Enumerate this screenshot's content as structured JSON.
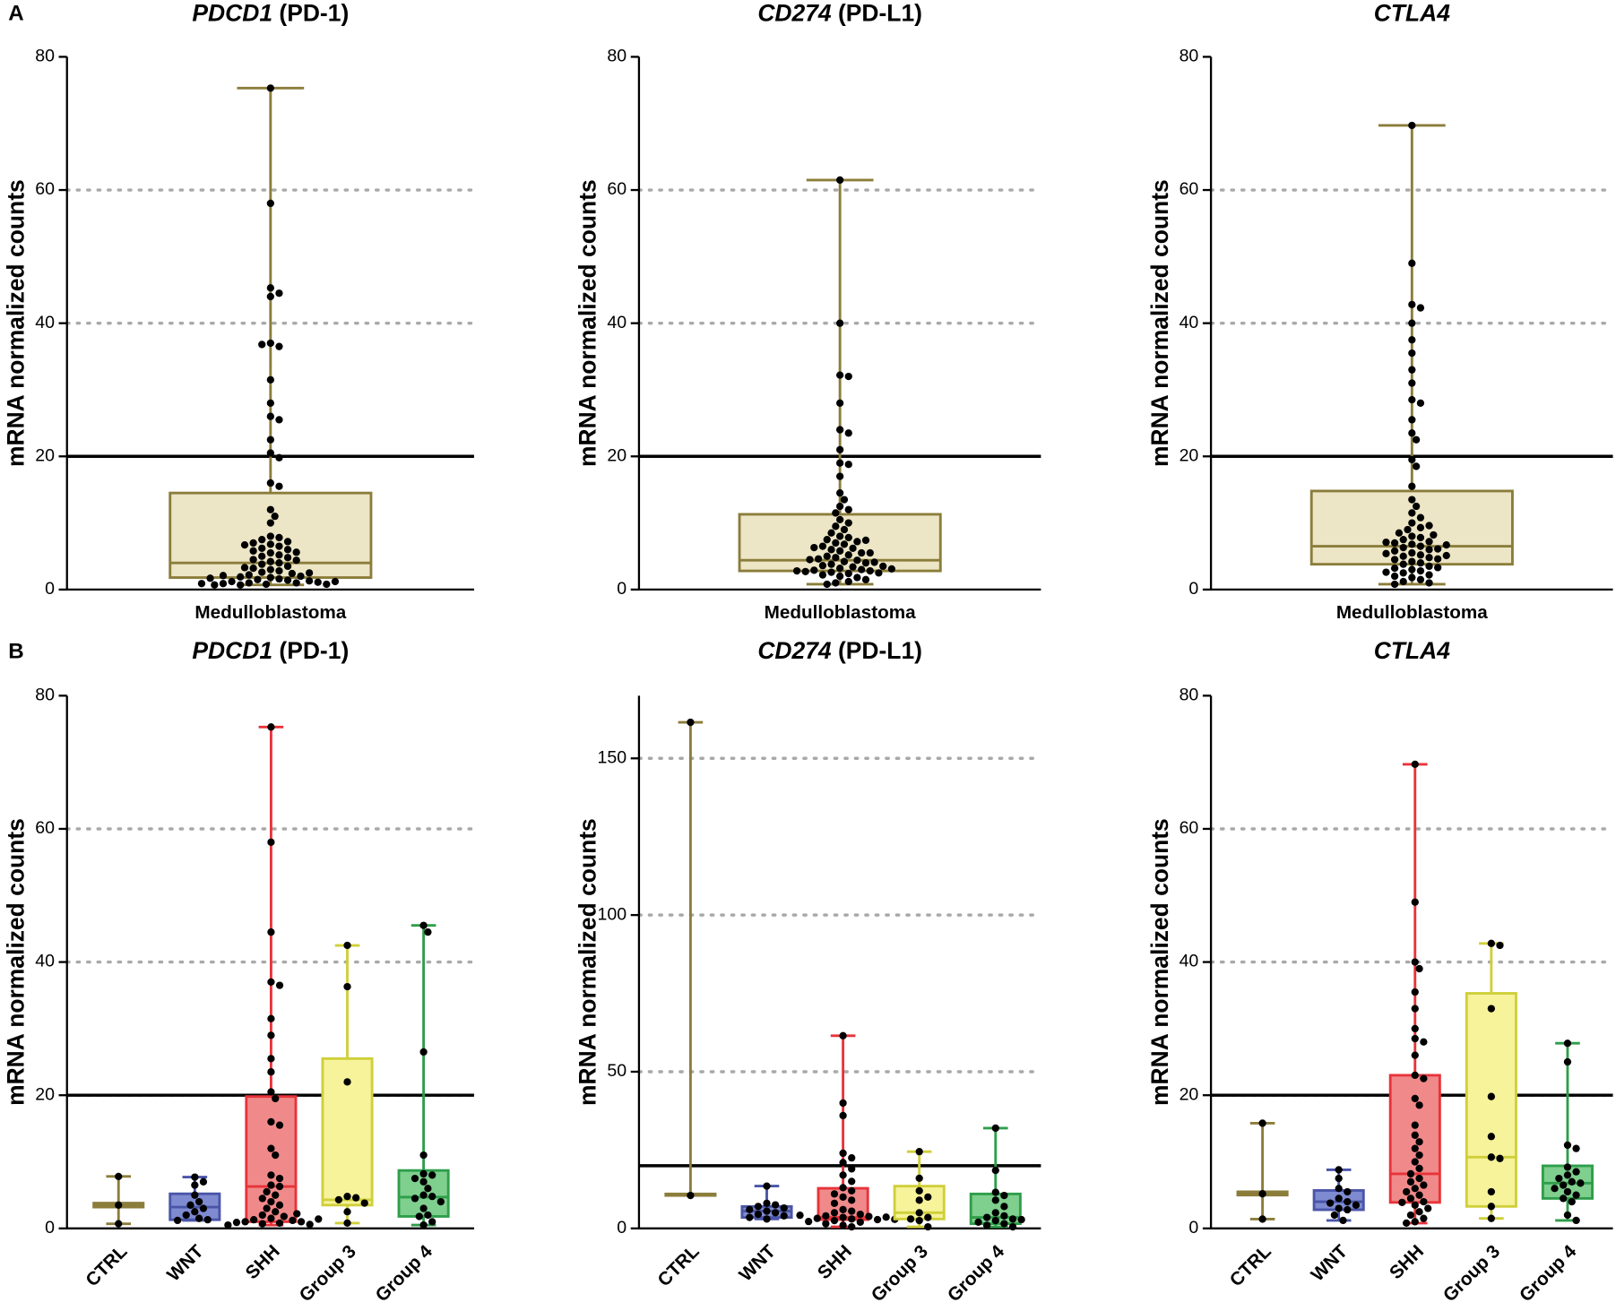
{
  "chart_data": [
    {
      "type": "box",
      "panel": "A",
      "title_gene": "PDCD1",
      "title_protein": "(PD-1)",
      "ylabel": "mRNA normalized counts",
      "ylim": [
        0,
        80
      ],
      "yticks": [
        0,
        20,
        40,
        60,
        80
      ],
      "threshold": 20,
      "grid": true,
      "categories": [
        "Medulloblastoma"
      ],
      "boxes": [
        {
          "stroke": "#8b7d3a",
          "fill": "#ece5c6",
          "min": 0.7,
          "q1": 1.8,
          "median": 4,
          "q3": 14.5,
          "max": 75.3,
          "points": [
            75.3,
            58,
            45.3,
            44.5,
            44,
            37,
            36.5,
            36.8,
            31.5,
            28,
            26,
            25.5,
            22.5,
            20.5,
            19.8,
            16,
            15.5,
            12,
            11,
            10,
            8,
            7.8,
            7.5,
            7.2,
            7,
            6.8,
            6.5,
            6.2,
            6,
            5.8,
            5.5,
            5.2,
            5,
            4.8,
            4.5,
            4.2,
            4,
            3.8,
            3.5,
            3.2,
            3,
            2.8,
            2.6,
            2.4,
            2.2,
            2,
            1.9,
            1.8,
            1.6,
            1.5,
            1.4,
            1.3,
            1.2,
            1.1,
            1,
            1,
            0.9,
            0.8,
            0.8,
            0.7,
            0.7,
            2.5,
            3.3,
            4.4,
            5.6,
            6.7,
            1.7,
            2.1,
            1.2,
            0.9
          ]
        }
      ]
    },
    {
      "type": "box",
      "title_gene": "CD274",
      "title_protein": "(PD-L1)",
      "ylabel": "mRNA normalized counts",
      "ylim": [
        0,
        80
      ],
      "yticks": [
        0,
        20,
        40,
        60,
        80
      ],
      "threshold": 20,
      "grid": true,
      "categories": [
        "Medulloblastoma"
      ],
      "boxes": [
        {
          "stroke": "#8b7d3a",
          "fill": "#ece5c6",
          "min": 0.8,
          "q1": 2.8,
          "median": 4.4,
          "q3": 11.3,
          "max": 61.5,
          "points": [
            61.5,
            40,
            32.2,
            32,
            28,
            24,
            23.5,
            21,
            19,
            18.8,
            17,
            14.5,
            13.5,
            12.5,
            12,
            11.5,
            10.5,
            10,
            9.5,
            9,
            8.5,
            8,
            7.8,
            7.5,
            7.2,
            7,
            6.8,
            6.5,
            6.2,
            6,
            5.8,
            5.5,
            5.2,
            5,
            4.8,
            4.6,
            4.4,
            4.2,
            4,
            3.8,
            3.6,
            3.4,
            3.2,
            3,
            2.9,
            2.8,
            2.7,
            2.6,
            2.5,
            2.4,
            2.2,
            2,
            1.8,
            1.5,
            1.2,
            1,
            0.8,
            3.5,
            4.5,
            5.5,
            2.8,
            3.1,
            6.3,
            7.4,
            4.1
          ]
        }
      ]
    },
    {
      "type": "box",
      "title_gene": "CTLA4",
      "ylabel": "mRNA normalized counts",
      "ylim": [
        0,
        80
      ],
      "yticks": [
        0,
        20,
        40,
        60,
        80
      ],
      "threshold": 20,
      "grid": true,
      "categories": [
        "Medulloblastoma"
      ],
      "boxes": [
        {
          "stroke": "#8b7d3a",
          "fill": "#ece5c6",
          "min": 0.8,
          "q1": 3.8,
          "median": 6.5,
          "q3": 14.8,
          "max": 69.7,
          "points": [
            69.7,
            49,
            42.8,
            42.3,
            40,
            37.5,
            35.5,
            33,
            31,
            28.5,
            28,
            25.5,
            23.5,
            22.5,
            19.5,
            18.5,
            15.5,
            13.5,
            12.5,
            11.5,
            10.8,
            10,
            9.3,
            9,
            8.5,
            8,
            7.8,
            7.5,
            7.2,
            7,
            6.8,
            6.5,
            6.3,
            6,
            5.8,
            5.5,
            5.2,
            5,
            4.8,
            4.5,
            4.2,
            4,
            3.8,
            3.5,
            3.2,
            3,
            2.8,
            2.5,
            2.2,
            2,
            1.8,
            1.5,
            1.2,
            1,
            0.8,
            6.1,
            7.1,
            8.2,
            5.4,
            4.6,
            3.3,
            2.6,
            9.6,
            6.7,
            5.1
          ]
        }
      ]
    },
    {
      "type": "box",
      "panel": "B",
      "title_gene": "PDCD1",
      "title_protein": "(PD-1)",
      "ylabel": "mRNA normalized counts",
      "ylim": [
        0,
        80
      ],
      "yticks": [
        0,
        20,
        40,
        60,
        80
      ],
      "threshold": 20,
      "grid": true,
      "categories": [
        "CTRL",
        "WNT",
        "SHH",
        "Group 3",
        "Group 4"
      ],
      "boxes": [
        {
          "stroke": "#8b7d3a",
          "fill": "#ece5c6",
          "min": 0.7,
          "q1": 3.2,
          "median": 3.5,
          "q3": 3.8,
          "max": 7.8,
          "points": [
            7.8,
            3.5,
            0.7
          ]
        },
        {
          "stroke": "#4a55a8",
          "fill": "#7f8bd0",
          "min": 1.2,
          "q1": 1.3,
          "median": 3.2,
          "q3": 5.2,
          "max": 7.7,
          "points": [
            7.7,
            7,
            6.5,
            5,
            4,
            3.5,
            3,
            2.5,
            2,
            1.5,
            1.3,
            1.2
          ]
        },
        {
          "stroke": "#e8333a",
          "fill": "#f08a8a",
          "min": 0.5,
          "q1": 1,
          "median": 6.3,
          "q3": 19.8,
          "max": 75.3,
          "points": [
            75.3,
            58,
            44.5,
            37,
            36.5,
            31.5,
            29,
            25.5,
            23.5,
            20.5,
            19.5,
            16,
            15.5,
            12,
            11,
            8,
            7.5,
            6.5,
            6.3,
            5.5,
            5,
            4.5,
            4,
            3.5,
            3,
            2.5,
            2,
            1.8,
            1.5,
            1.3,
            1.2,
            1,
            1,
            0.9,
            0.8,
            0.7,
            0.6,
            0.5,
            1.4,
            2.2
          ]
        },
        {
          "stroke": "#cfcf3a",
          "fill": "#f7f39a",
          "min": 0.8,
          "q1": 3.5,
          "median": 4.3,
          "q3": 25.5,
          "max": 42.5,
          "points": [
            42.5,
            36.3,
            22,
            4.8,
            4.6,
            4.3,
            3.8,
            2.5,
            0.8
          ]
        },
        {
          "stroke": "#2e9e4a",
          "fill": "#7fcf8e",
          "min": 0.5,
          "q1": 1.8,
          "median": 4.7,
          "q3": 8.7,
          "max": 45.5,
          "points": [
            45.5,
            44.5,
            26.5,
            11,
            8.2,
            8,
            7.5,
            7,
            6,
            5,
            4.8,
            4.5,
            4,
            3,
            2,
            1.8,
            1,
            0.5
          ]
        }
      ]
    },
    {
      "type": "box",
      "title_gene": "CD274",
      "title_protein": "(PD-L1)",
      "ylabel": "mRNA normalized counts",
      "ylim": [
        0,
        170
      ],
      "yticks": [
        0,
        50,
        100,
        150
      ],
      "threshold": 20,
      "grid": true,
      "categories": [
        "CTRL",
        "WNT",
        "SHH",
        "Group 3",
        "Group 4"
      ],
      "boxes": [
        {
          "stroke": "#8b7d3a",
          "fill": "#ece5c6",
          "min": 10.5,
          "q1": 10.5,
          "median": 10.8,
          "q3": 11,
          "max": 161.5,
          "points": [
            161.5,
            10.5
          ]
        },
        {
          "stroke": "#4a55a8",
          "fill": "#7f8bd0",
          "min": 3,
          "q1": 3.5,
          "median": 5.5,
          "q3": 7,
          "max": 13.5,
          "points": [
            13.5,
            8,
            7.5,
            7,
            6.5,
            6,
            5.5,
            5,
            4.5,
            4,
            3.5,
            3
          ]
        },
        {
          "stroke": "#e8333a",
          "fill": "#f08a8a",
          "min": 0.5,
          "q1": 2.8,
          "median": 3.5,
          "q3": 12.8,
          "max": 61.5,
          "points": [
            61.5,
            40,
            36,
            24,
            22.5,
            21,
            19,
            17,
            15,
            13,
            12,
            11,
            10,
            9,
            8,
            6,
            5.5,
            5,
            4.5,
            4,
            3.8,
            3.5,
            3.2,
            3,
            2.8,
            2.5,
            2.2,
            2,
            1.5,
            1,
            0.5,
            3.6,
            4.2,
            2.9
          ]
        },
        {
          "stroke": "#cfcf3a",
          "fill": "#f7f39a",
          "min": 0.5,
          "q1": 3,
          "median": 5,
          "q3": 13.5,
          "max": 24.5,
          "points": [
            24.5,
            16,
            12,
            10,
            9,
            5,
            3.5,
            3,
            2.5,
            0.5
          ]
        },
        {
          "stroke": "#2e9e4a",
          "fill": "#7fcf8e",
          "min": 0.5,
          "q1": 1.5,
          "median": 3.5,
          "q3": 11,
          "max": 32,
          "points": [
            32,
            18.5,
            11.5,
            10.5,
            9,
            7,
            5,
            4,
            3.5,
            3,
            2.5,
            2,
            1.5,
            1,
            0.5,
            2.8
          ]
        }
      ]
    },
    {
      "type": "box",
      "title_gene": "CTLA4",
      "ylabel": "mRNA normalized counts",
      "ylim": [
        0,
        80
      ],
      "yticks": [
        0,
        20,
        40,
        60,
        80
      ],
      "threshold": 20,
      "grid": true,
      "categories": [
        "CTRL",
        "WNT",
        "SHH",
        "Group 3",
        "Group 4"
      ],
      "boxes": [
        {
          "stroke": "#8b7d3a",
          "fill": "#ece5c6",
          "min": 1.4,
          "q1": 5,
          "median": 5.2,
          "q3": 5.5,
          "max": 15.8,
          "points": [
            15.8,
            5.2,
            1.4
          ]
        },
        {
          "stroke": "#4a55a8",
          "fill": "#7f8bd0",
          "min": 1.2,
          "q1": 2.8,
          "median": 4,
          "q3": 5.7,
          "max": 8.8,
          "points": [
            8.8,
            7.5,
            6,
            5.5,
            4.5,
            4,
            3.8,
            3.5,
            3,
            2.8,
            2,
            1.2
          ]
        },
        {
          "stroke": "#e8333a",
          "fill": "#f08a8a",
          "min": 0.8,
          "q1": 3.9,
          "median": 8.2,
          "q3": 23,
          "max": 69.7,
          "points": [
            69.7,
            49,
            40,
            39,
            35.5,
            33,
            30,
            28.5,
            28,
            26,
            23,
            22.5,
            19.5,
            18.5,
            15.5,
            14,
            13,
            12,
            11,
            10,
            9,
            8.2,
            7.5,
            7,
            6.5,
            6,
            5.5,
            5,
            4.5,
            4,
            3.9,
            3.5,
            3,
            2.5,
            2,
            1.5,
            1,
            0.8
          ]
        },
        {
          "stroke": "#cfcf3a",
          "fill": "#f7f39a",
          "min": 1.5,
          "q1": 3.3,
          "median": 10.7,
          "q3": 35.3,
          "max": 42.8,
          "points": [
            42.8,
            42.5,
            33,
            19.8,
            13.8,
            10.7,
            10.5,
            5.5,
            3.3,
            1.5
          ]
        },
        {
          "stroke": "#2e9e4a",
          "fill": "#7fcf8e",
          "min": 1.2,
          "q1": 4.5,
          "median": 6.8,
          "q3": 9.4,
          "max": 27.8,
          "points": [
            27.8,
            25,
            12.5,
            12,
            9.2,
            8.5,
            8,
            7.5,
            7,
            6.8,
            6.5,
            6,
            5.5,
            5,
            4.5,
            4,
            2,
            1.2
          ]
        }
      ]
    }
  ]
}
